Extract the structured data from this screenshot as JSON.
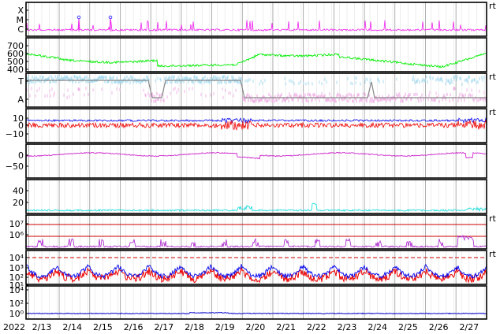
{
  "chart_data": {
    "type": "line",
    "year_label": "2022",
    "x_ticks": [
      "2/13",
      "2/14",
      "2/15",
      "2/16",
      "2/17",
      "2/18",
      "2/19",
      "2/20",
      "2/21",
      "2/22",
      "2/23",
      "2/24",
      "2/25",
      "2/26",
      "2/27"
    ],
    "x_range": [
      "2022-02-12T13:00",
      "2022-02-27T13:00"
    ],
    "right_marker": "rt",
    "panels": [
      {
        "id": "xray",
        "tick_labels": [
          "X",
          "M",
          "C"
        ],
        "right_marker": "rt",
        "series": [
          {
            "color": "#ee22ee"
          }
        ]
      },
      {
        "id": "speed",
        "tick_labels": [
          "700",
          "600",
          "500",
          "400"
        ],
        "ylim": [
          350,
          750
        ],
        "series": [
          {
            "color": "#00ee00"
          }
        ]
      },
      {
        "id": "polarity",
        "tick_labels": [
          "T",
          "A"
        ],
        "right_marker": "rt",
        "series": [
          {
            "color": "#aadcf0"
          },
          {
            "color": "#f0b4e6"
          },
          {
            "color": "#888888"
          }
        ]
      },
      {
        "id": "bfield",
        "tick_labels": [
          "10",
          "0",
          "−10"
        ],
        "ylim": [
          -18,
          15
        ],
        "right_marker": "rt",
        "series": [
          {
            "color": "#0000ee"
          },
          {
            "color": "#ee0000"
          }
        ]
      },
      {
        "id": "dst",
        "tick_labels": [
          "0",
          "−50"
        ],
        "ylim": [
          -90,
          25
        ],
        "series": [
          {
            "color": "#cc22cc"
          }
        ]
      },
      {
        "id": "kp",
        "tick_labels": [
          "40",
          "20"
        ],
        "ylim": [
          0,
          50
        ],
        "series": [
          {
            "color": "#22dddd"
          }
        ]
      },
      {
        "id": "electrons",
        "tick_labels": [
          "10⁷",
          "10⁶"
        ],
        "right_marker": "rt",
        "series": [
          {
            "color": "#aa22cc"
          }
        ]
      },
      {
        "id": "protons",
        "tick_labels": [
          "10⁴",
          "10³",
          "10²",
          "10¹"
        ],
        "right_marker": "rt",
        "series": [
          {
            "color": "#0000ee"
          },
          {
            "color": "#ee0000"
          }
        ]
      },
      {
        "id": "neutrons",
        "tick_labels": [
          "10⁴",
          "10²",
          "10⁰"
        ],
        "series": [
          {
            "color": "#0000cc"
          }
        ]
      }
    ]
  }
}
